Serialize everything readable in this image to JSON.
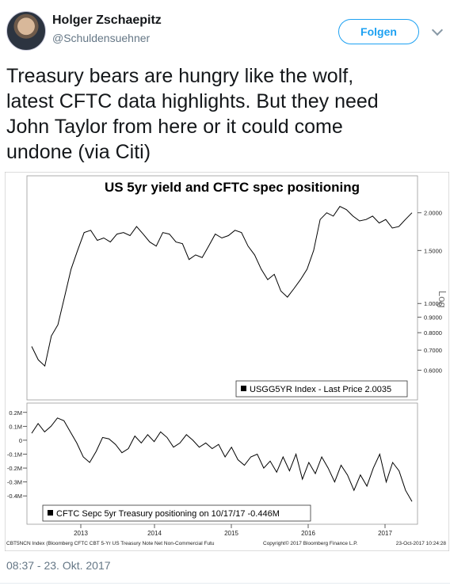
{
  "user": {
    "name": "Holger Zschaepitz",
    "handle": "@Schuldensuehner"
  },
  "follow_label": "Folgen",
  "tweet_text": [
    "Treasury bears are hungry like the wolf,",
    "latest CFTC data highlights. But they need",
    "John Taylor from here or it could come",
    "undone (via Citi)"
  ],
  "timestamp": "08:37 - 23. Okt. 2017",
  "chart_data": [
    {
      "type": "line",
      "title": "US 5yr yield and CFTC spec positioning",
      "scale": "log",
      "ylabel": "Log",
      "yticks": [
        "2.0000",
        "1.5000",
        "1.0000",
        "0.9000",
        "0.8000",
        "0.7000",
        "0.6000"
      ],
      "ylim": [
        0.56,
        2.2
      ],
      "legend": "USGG5YR Index - Last Price 2.0035",
      "series": [
        {
          "name": "USGG5YR Index",
          "values": [
            0.72,
            0.65,
            0.62,
            0.78,
            0.85,
            1.05,
            1.3,
            1.5,
            1.72,
            1.75,
            1.62,
            1.65,
            1.6,
            1.7,
            1.72,
            1.68,
            1.8,
            1.7,
            1.6,
            1.55,
            1.72,
            1.7,
            1.6,
            1.58,
            1.4,
            1.45,
            1.42,
            1.55,
            1.7,
            1.65,
            1.68,
            1.75,
            1.72,
            1.55,
            1.45,
            1.3,
            1.2,
            1.25,
            1.1,
            1.05,
            1.12,
            1.2,
            1.3,
            1.5,
            1.9,
            2.0,
            1.95,
            2.1,
            2.05,
            1.95,
            1.88,
            1.9,
            1.95,
            1.85,
            1.9,
            1.78,
            1.8,
            1.9,
            2.0
          ]
        }
      ]
    },
    {
      "type": "line",
      "yticks": [
        "0.2M",
        "0.1M",
        "0",
        "-0.1M",
        "-0.2M",
        "-0.3M",
        "-0.4M"
      ],
      "ylim": [
        -0.45,
        0.21
      ],
      "xticks": [
        "2013",
        "2014",
        "2015",
        "2016",
        "2017"
      ],
      "legend": "CFTC Sepc 5yr Treasury positioning on 10/17/17 -0.446M",
      "series": [
        {
          "name": "CFTC Sepc 5yr Treasury positioning",
          "values": [
            0.05,
            0.12,
            0.06,
            0.1,
            0.16,
            0.14,
            0.06,
            -0.02,
            -0.12,
            -0.16,
            -0.08,
            0.02,
            0.01,
            -0.03,
            -0.09,
            -0.06,
            0.03,
            -0.02,
            0.04,
            -0.01,
            0.06,
            0.02,
            -0.05,
            -0.02,
            0.04,
            0.0,
            -0.05,
            -0.02,
            -0.06,
            -0.03,
            -0.12,
            -0.05,
            -0.14,
            -0.18,
            -0.12,
            -0.1,
            -0.2,
            -0.15,
            -0.23,
            -0.12,
            -0.22,
            -0.1,
            -0.28,
            -0.16,
            -0.24,
            -0.12,
            -0.2,
            -0.3,
            -0.18,
            -0.25,
            -0.36,
            -0.25,
            -0.33,
            -0.2,
            -0.1,
            -0.3,
            -0.16,
            -0.22,
            -0.36,
            -0.44
          ]
        }
      ]
    }
  ],
  "footer": {
    "left": "CBT5NCN Index (Bloomberg CFTC CBT 5-Yr US Treasury Note Net Non-Commercial Futu",
    "mid": "Copyright© 2017 Bloomberg Finance L.P.",
    "right": "23-Oct-2017 10:24:28"
  }
}
